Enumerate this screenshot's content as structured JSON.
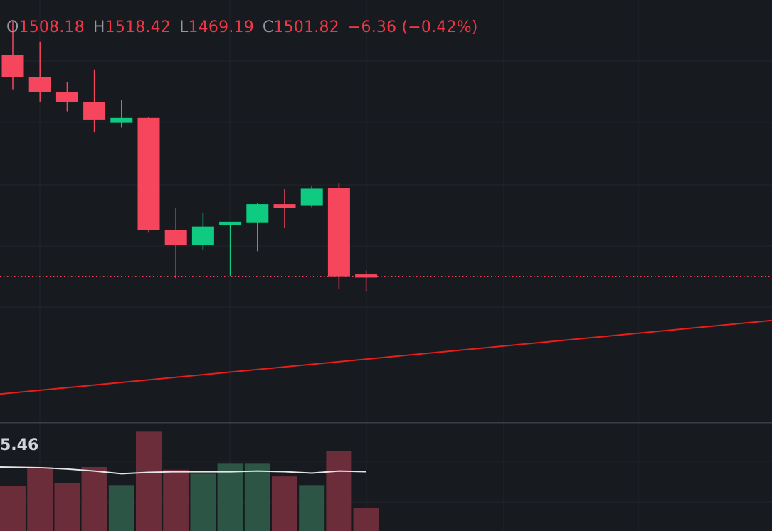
{
  "legend": {
    "open_label": "O",
    "open": "1508.18",
    "high_label": "H",
    "high": "1518.42",
    "low_label": "L",
    "low": "1469.19",
    "close_label": "C",
    "close": "1501.82",
    "change": "−6.36",
    "change_pct": "(−0.42%)"
  },
  "volume_indicator": {
    "value_text": "5.46"
  },
  "colors": {
    "background": "#171a1f",
    "grid": "#22262d",
    "up": "#0ecb81",
    "down": "#f6465d",
    "volume_up": "#2c5545",
    "volume_down": "#6b2d39",
    "volume_ma": "#e6e6e6",
    "trendline": "#e61e1e",
    "price_line": "#f6465d",
    "text": "#d1d4dc",
    "label": "#9598a1"
  },
  "chart_data": {
    "type": "candlestick",
    "price_range": [
      1455,
      1551
    ],
    "candles": [
      {
        "o": 1538.4,
        "h": 1546.4,
        "l": 1530.7,
        "c": 1533.5
      },
      {
        "o": 1533.5,
        "h": 1541.5,
        "l": 1527.9,
        "c": 1530.0
      },
      {
        "o": 1530.0,
        "h": 1532.3,
        "l": 1525.7,
        "c": 1527.8
      },
      {
        "o": 1527.8,
        "h": 1535.2,
        "l": 1520.9,
        "c": 1523.7
      },
      {
        "o": 1523.1,
        "h": 1528.3,
        "l": 1522.0,
        "c": 1524.2
      },
      {
        "o": 1524.2,
        "h": 1524.4,
        "l": 1498.1,
        "c": 1498.7
      },
      {
        "o": 1498.7,
        "h": 1503.8,
        "l": 1487.7,
        "c": 1495.4
      },
      {
        "o": 1495.4,
        "h": 1502.6,
        "l": 1494.1,
        "c": 1499.5
      },
      {
        "o": 1499.9,
        "h": 1500.5,
        "l": 1488.3,
        "c": 1500.6
      },
      {
        "o": 1500.3,
        "h": 1504.9,
        "l": 1493.9,
        "c": 1504.6
      },
      {
        "o": 1504.6,
        "h": 1508.0,
        "l": 1499.1,
        "c": 1503.7
      },
      {
        "o": 1504.2,
        "h": 1508.8,
        "l": 1503.9,
        "c": 1508.1
      },
      {
        "o": 1508.2,
        "h": 1509.3,
        "l": 1485.2,
        "c": 1488.2
      },
      {
        "o": 1488.6,
        "h": 1489.5,
        "l": 1484.7,
        "c": 1487.9
      }
    ],
    "volume": {
      "values": [
        6.8,
        9.6,
        7.2,
        9.6,
        6.9,
        14.9,
        9.2,
        8.6,
        10.1,
        10.1,
        8.2,
        6.9,
        12.0,
        3.5
      ],
      "directions": [
        "down",
        "down",
        "down",
        "down",
        "up",
        "down",
        "down",
        "up",
        "up",
        "up",
        "down",
        "up",
        "down",
        "down"
      ],
      "ma": [
        9.6,
        9.5,
        9.3,
        9.0,
        8.6,
        8.8,
        8.9,
        8.9,
        8.9,
        9.0,
        8.9,
        8.7,
        9.0,
        8.9
      ],
      "max": 16
    },
    "trendline": {
      "from": {
        "index": -0.5,
        "price": 1461.4
      },
      "to": {
        "index": 28.2,
        "price": 1478.3
      }
    },
    "last_price_line": 1488.2
  }
}
